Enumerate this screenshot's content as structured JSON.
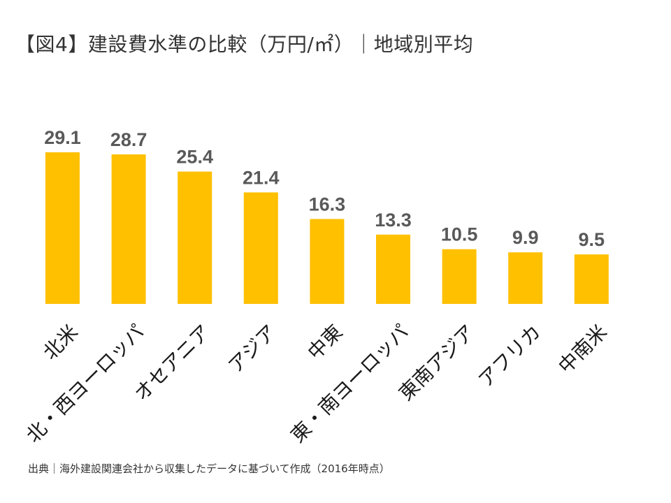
{
  "title": "【図4】建設費水準の比較（万円/㎡）｜地域別平均",
  "source": "出典｜海外建設関連会社から収集したデータに基づいて作成（2016年時点）",
  "colors": {
    "bar": "#FFC000",
    "value_text": "#595959",
    "text": "#333333"
  },
  "chart_data": {
    "type": "bar",
    "title": "【図4】建設費水準の比較（万円/㎡）｜地域別平均",
    "xlabel": "",
    "ylabel": "",
    "ylim": [
      0,
      29.1
    ],
    "grid": false,
    "categories": [
      "北米",
      "北・西ヨーロッパ",
      "オセアニア",
      "アジア",
      "中東",
      "東・南ヨーロッパ",
      "東南アジア",
      "アフリカ",
      "中南米"
    ],
    "values": [
      29.1,
      28.7,
      25.4,
      21.4,
      16.3,
      13.3,
      10.5,
      9.9,
      9.5
    ],
    "value_labels": [
      "29.1",
      "28.7",
      "25.4",
      "21.4",
      "16.3",
      "13.3",
      "10.5",
      "9.9",
      "9.5"
    ]
  }
}
